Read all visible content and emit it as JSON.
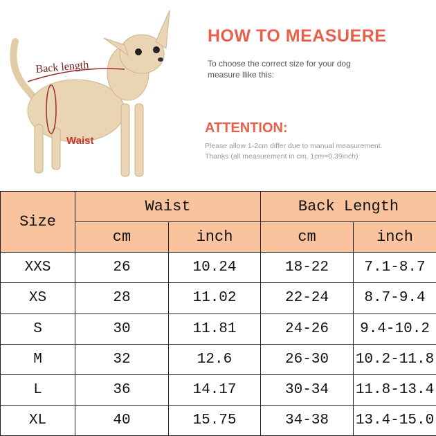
{
  "figure": {
    "back_length_label": "Back length",
    "waist_label": "Waist"
  },
  "heading": "HOW TO MEASUERE",
  "intro": [
    "To choose the correct size for your dog",
    "measure llike this:"
  ],
  "attention": {
    "title": "ATTENTION:",
    "lines": [
      "Please allow 1-2cm differ due to manual measurement.",
      "Thanks (all measurement in cm, 1cm=0.39inch)"
    ]
  },
  "table": {
    "header": {
      "size": "Size",
      "groups": [
        "Waist",
        "Back Length"
      ],
      "units": [
        "cm",
        "inch",
        "cm",
        "inch"
      ]
    },
    "rows": [
      [
        "XXS",
        "26",
        "10.24",
        "18-22",
        "7.1-8.7"
      ],
      [
        "XS",
        "28",
        "11.02",
        "22-24",
        "8.7-9.4"
      ],
      [
        "S",
        "30",
        "11.81",
        "24-26",
        "9.4-10.2"
      ],
      [
        "M",
        "32",
        "12.6",
        "26-30",
        "10.2-11.8"
      ],
      [
        "L",
        "36",
        "14.17",
        "30-34",
        "11.8-13.4"
      ],
      [
        "XL",
        "40",
        "15.75",
        "34-38",
        "13.4-15.0"
      ]
    ]
  }
}
